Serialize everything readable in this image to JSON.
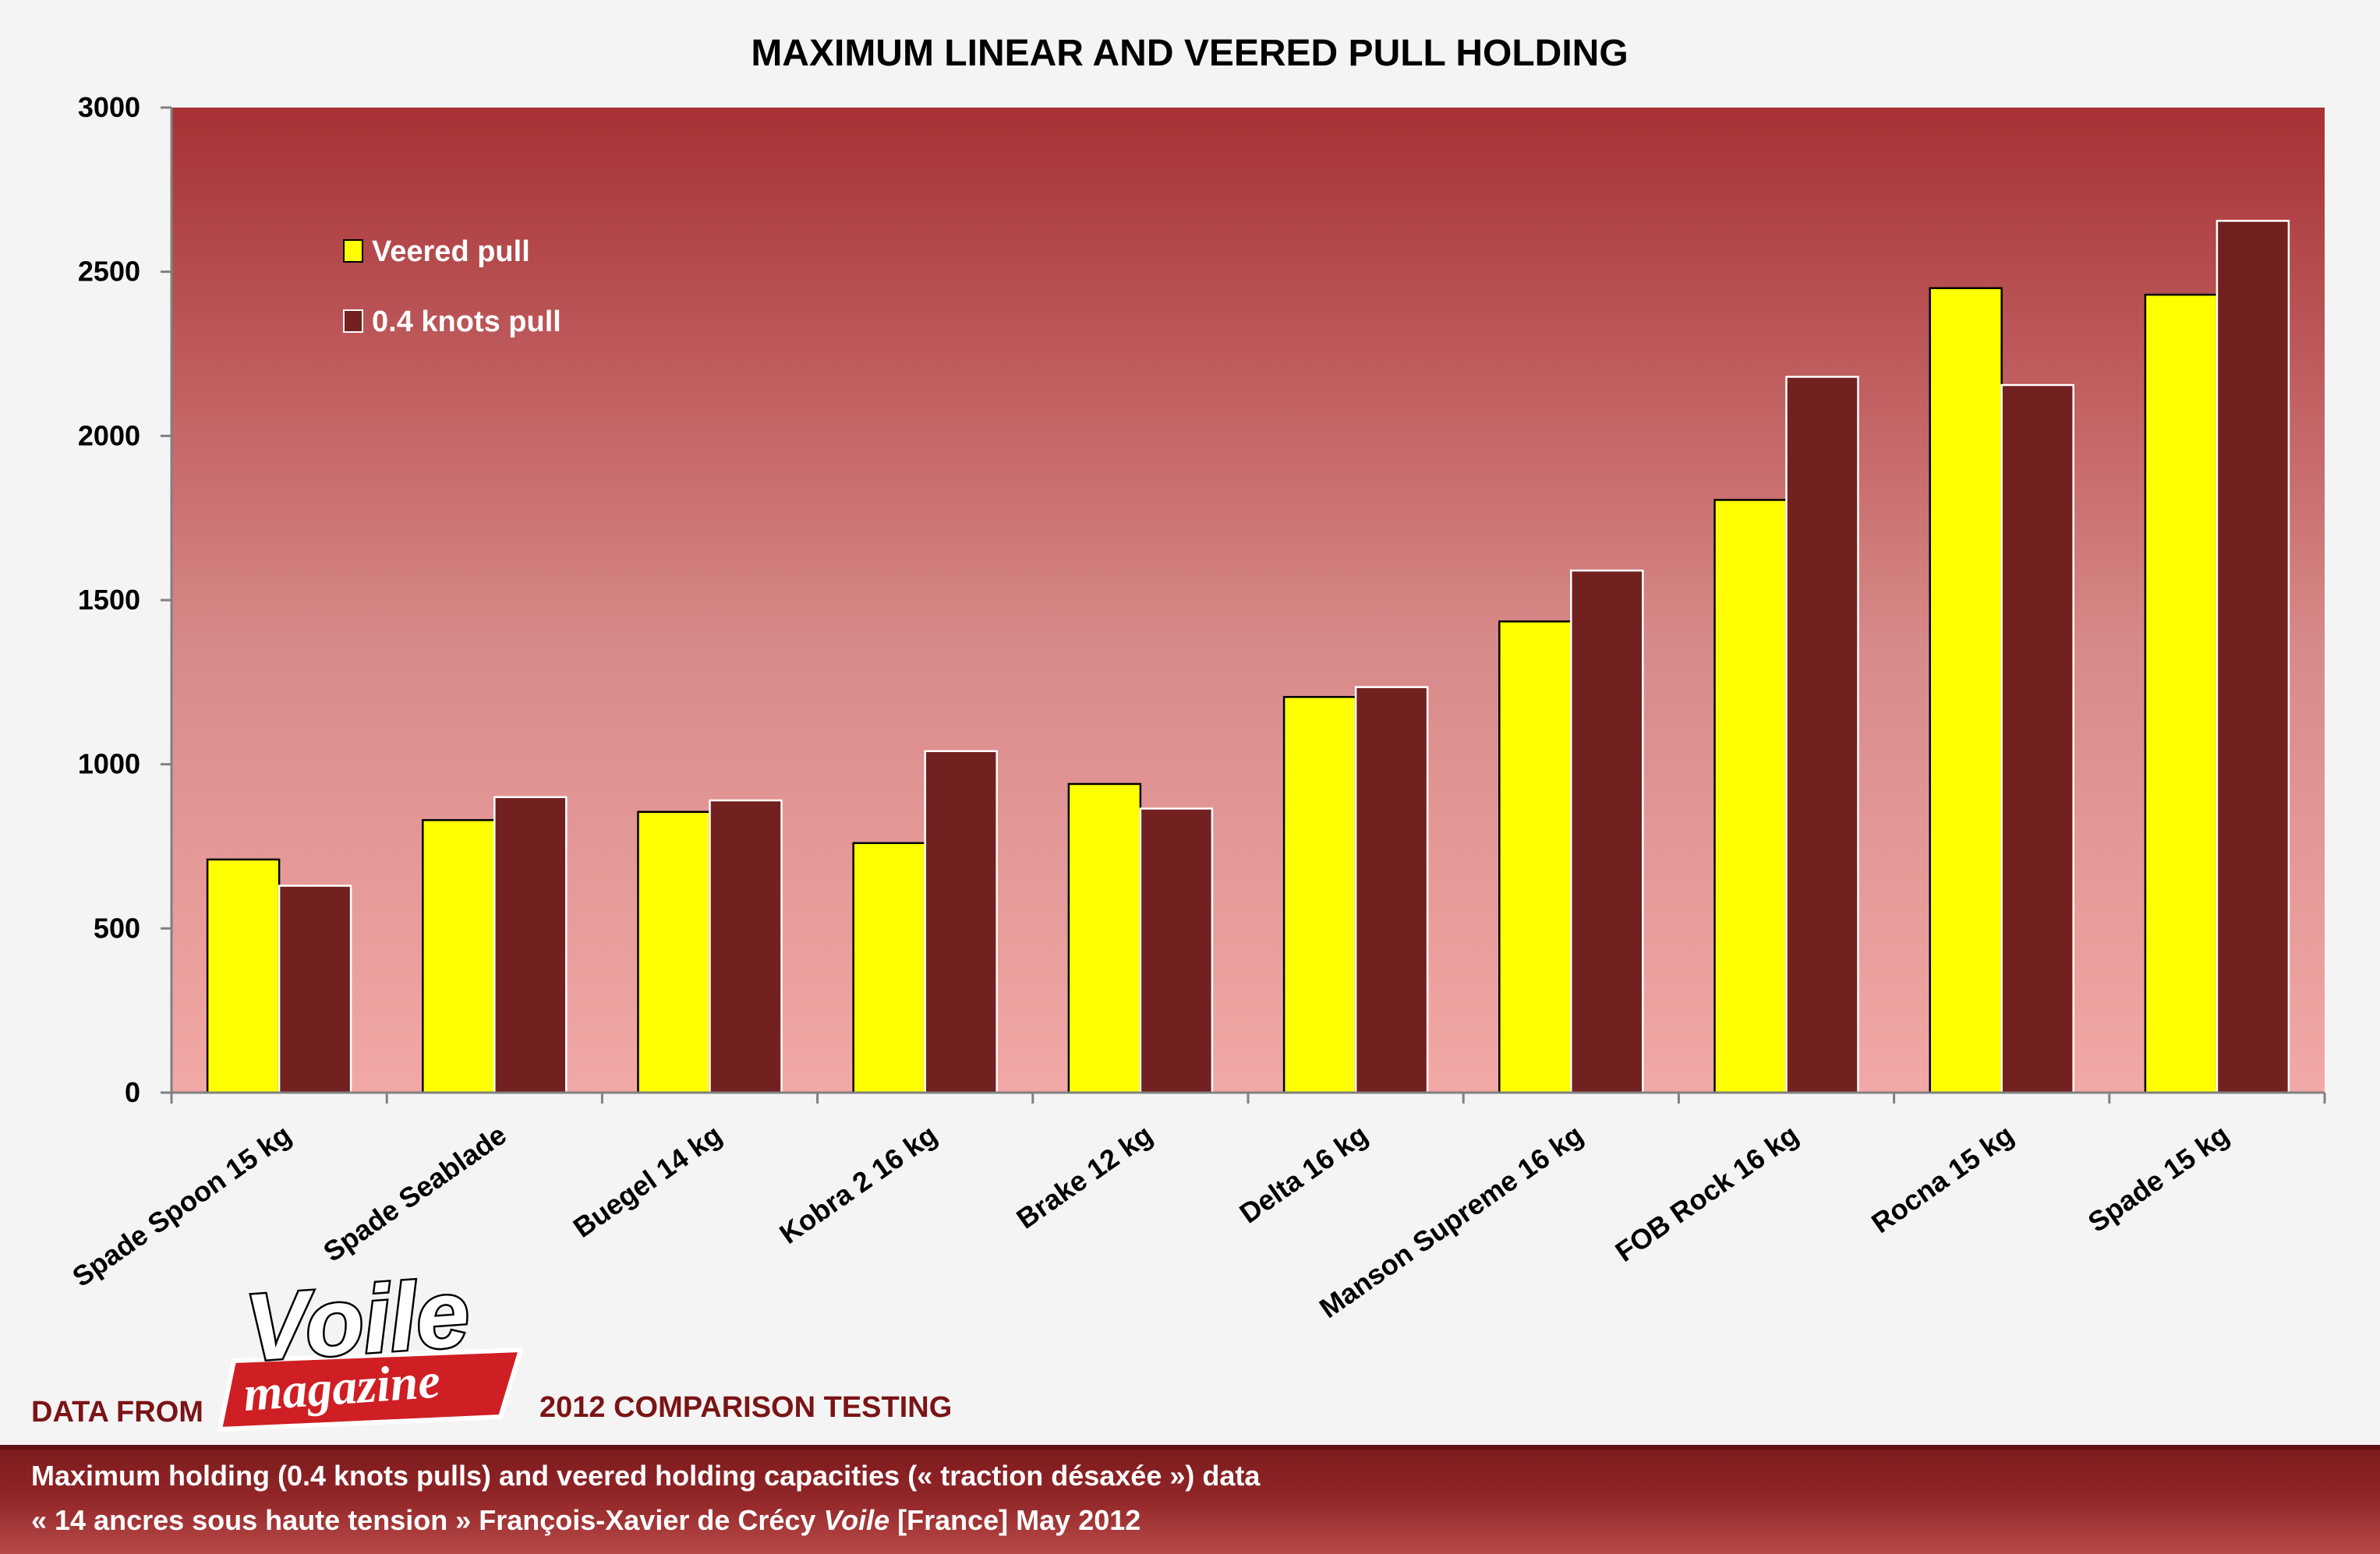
{
  "chart_data": {
    "type": "bar",
    "title": "MAXIMUM LINEAR AND VEERED PULL HOLDING",
    "xlabel": "",
    "ylabel": "",
    "ylim": [
      0,
      3000
    ],
    "yticks": [
      "0",
      "500",
      "1000",
      "1500",
      "2000",
      "2500",
      "3000"
    ],
    "categories": [
      "Spade Spoon 15 kg",
      "Spade Seablade",
      "Buegel 14 kg",
      "Kobra 2 16 kg",
      "Brake 12 kg",
      "Delta 16 kg",
      "Manson Supreme 16 kg",
      "FOB Rock 16 kg",
      "Rocna 15 kg",
      "Spade 15 kg"
    ],
    "series": [
      {
        "name": "Veered pull",
        "color": "#ffff00",
        "values": [
          710,
          830,
          855,
          760,
          940,
          1205,
          1435,
          1805,
          2450,
          2430
        ]
      },
      {
        "name": "0.4 knots pull",
        "color": "#722020",
        "values": [
          630,
          900,
          890,
          1040,
          865,
          1235,
          1590,
          2180,
          2155,
          2655
        ]
      }
    ],
    "grid": false,
    "legend_position": "top-left"
  },
  "branding": {
    "logo_word1": "Voile",
    "logo_word2": "magazine"
  },
  "credits": {
    "left": "DATA FROM",
    "right": "2012 COMPARISON TESTING"
  },
  "footer": {
    "line1": "Maximum holding (0.4 knots pulls) and veered holding capacities (« traction désaxée ») data",
    "line2_before": "« 14 ancres sous haute tension » François-Xavier de Crécy ",
    "line2_italic": "Voile",
    "line2_after": " [France] May 2012"
  },
  "colors": {
    "plot_top": "#a73134",
    "plot_bottom": "#f2a8a6",
    "footer_band": "#8f2326",
    "accent_text": "#7b1416"
  }
}
